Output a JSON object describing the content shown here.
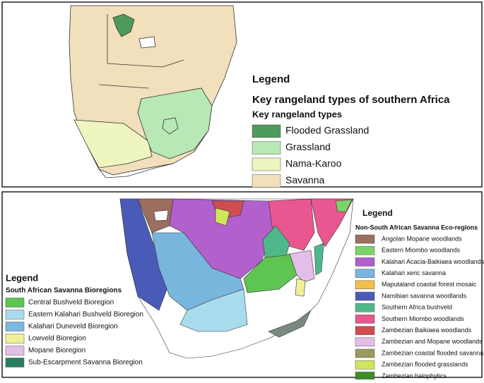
{
  "top_panel": {
    "legend_title": "Legend",
    "title": "Key rangeland types of southern Africa",
    "subtitle": "Key rangeland types",
    "items": [
      {
        "label": "Flooded Grassland",
        "color": "#4e9a5d"
      },
      {
        "label": "Grassland",
        "color": "#b7e8b5"
      },
      {
        "label": "Nama-Karoo",
        "color": "#eef5c0"
      },
      {
        "label": "Savanna",
        "color": "#f2dfbb"
      }
    ]
  },
  "bottom_panel": {
    "left_legend": {
      "title": "Legend",
      "subtitle": "South African Savanna  Bioregions",
      "items": [
        {
          "label": "Central Bushveld Bioregion",
          "color": "#5ec452"
        },
        {
          "label": "Eastern Kalahari Bushveld Bioregion",
          "color": "#a8dcec"
        },
        {
          "label": "Kalahari Duneveld Bioregion",
          "color": "#7ab8de"
        },
        {
          "label": "Lowveld Bioregion",
          "color": "#f1f09a"
        },
        {
          "label": "Mopane Bioregion",
          "color": "#e2bfe8"
        },
        {
          "label": "Sub-Escarpment Savanna Bioregion",
          "color": "#2a7d5e"
        }
      ]
    },
    "right_legend": {
      "title": "Legend",
      "subtitle": "Non-South African Savanna Eco-regions",
      "items": [
        {
          "label": "Angolan Mopane woodlands",
          "color": "#9b6e60"
        },
        {
          "label": "Eastern Miombo woodlands",
          "color": "#7ad46a"
        },
        {
          "label": "Kalahari Acacia-Baikiaea woodlands",
          "color": "#b160cc"
        },
        {
          "label": "Kalahari xeric savanna",
          "color": "#79b6dd"
        },
        {
          "label": "Maputaland coastal forest mosaic",
          "color": "#f2c04a"
        },
        {
          "label": "Namibian savanna woodlands",
          "color": "#4a5bb7"
        },
        {
          "label": "Southern Africa bushveld",
          "color": "#4fb88a"
        },
        {
          "label": "Southern Miombo woodlands",
          "color": "#e8578f"
        },
        {
          "label": "Zambezian Baikiaea woodlands",
          "color": "#cf4d4f"
        },
        {
          "label": "Zambezian and Mopane woodlands",
          "color": "#e4bde8"
        },
        {
          "label": "Zambezian coastal flooded savanna",
          "color": "#9a9a5e"
        },
        {
          "label": "Zambezian flooded grasslands",
          "color": "#cfe65c"
        },
        {
          "label": "Zambezian halophytics",
          "color": "#3f8a2e"
        }
      ]
    }
  }
}
